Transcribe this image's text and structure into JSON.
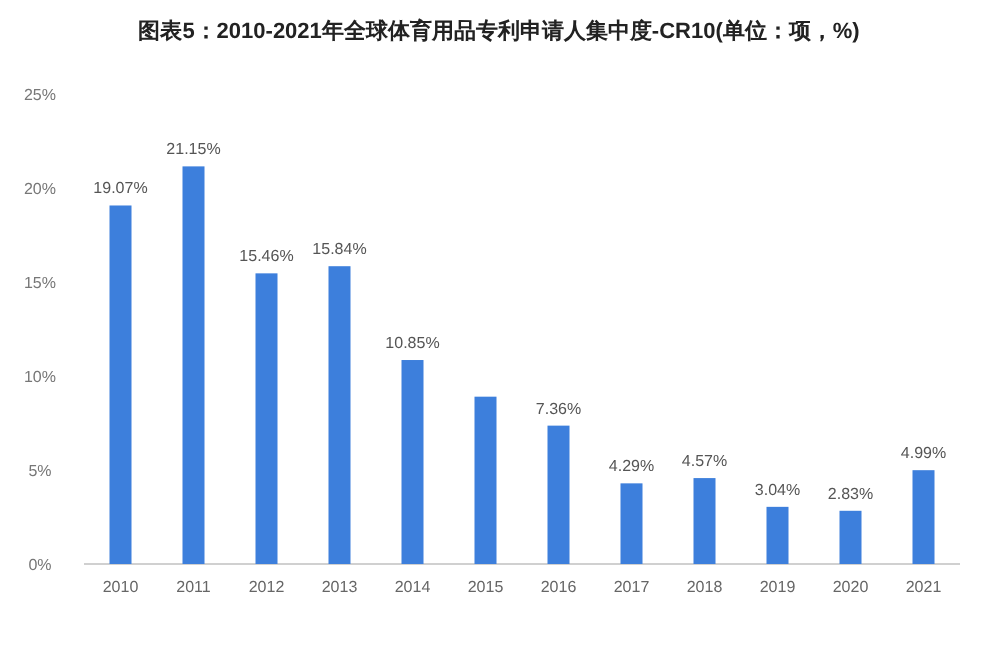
{
  "chart_data": {
    "type": "bar",
    "title": "图表5：2010-2021年全球体育用品专利申请人集中度-CR10(单位：项，%)",
    "categories": [
      "2010",
      "2011",
      "2012",
      "2013",
      "2014",
      "2015",
      "2016",
      "2017",
      "2018",
      "2019",
      "2020",
      "2021"
    ],
    "values": [
      19.07,
      21.15,
      15.46,
      15.84,
      10.85,
      8.9,
      7.36,
      4.29,
      4.57,
      3.04,
      2.83,
      4.99
    ],
    "value_labels": [
      "19.07%",
      "21.15%",
      "15.46%",
      "15.84%",
      "10.85%",
      null,
      "7.36%",
      "4.29%",
      "4.57%",
      "3.04%",
      "2.83%",
      "4.99%"
    ],
    "color": "#3d7fdc",
    "ylim": [
      0,
      25
    ],
    "yticks": [
      {
        "value": 0,
        "label": "0%"
      },
      {
        "value": 5,
        "label": "5%"
      },
      {
        "value": 10,
        "label": "10%"
      },
      {
        "value": 15,
        "label": "15%"
      },
      {
        "value": 20,
        "label": "20%"
      },
      {
        "value": 25,
        "label": "25%"
      }
    ]
  }
}
